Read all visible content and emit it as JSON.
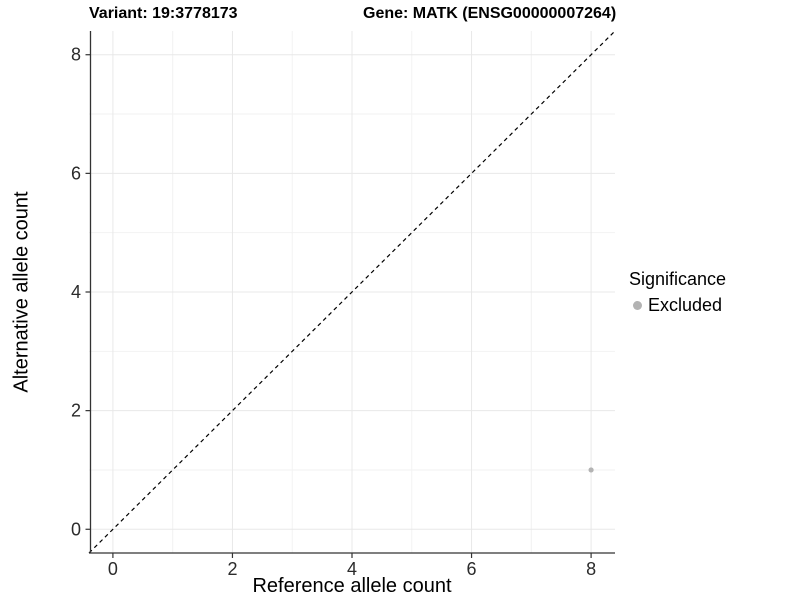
{
  "chart_data": {
    "type": "scatter",
    "titles": {
      "left": "Variant: 19:3778173",
      "right": "Gene: MATK (ENSG00000007264)"
    },
    "xlabel": "Reference allele count",
    "ylabel": "Alternative allele count",
    "xlim": [
      -0.4,
      8.4
    ],
    "ylim": [
      -0.4,
      8.4
    ],
    "x_ticks": [
      0,
      2,
      4,
      6,
      8
    ],
    "y_ticks": [
      0,
      2,
      4,
      6,
      8
    ],
    "x_minor": [
      1,
      3,
      5,
      7
    ],
    "y_minor": [
      1,
      3,
      5,
      7
    ],
    "grid": "on",
    "reference_line": {
      "type": "identity",
      "equation": "y = x",
      "style": "dashed",
      "color": "#000000"
    },
    "series": [
      {
        "name": "Excluded",
        "color": "#b3b3b3",
        "points": [
          {
            "x": 8,
            "y": 1
          }
        ]
      }
    ],
    "legend": {
      "title": "Significance",
      "position": "right",
      "items": [
        {
          "label": "Excluded",
          "color": "#b3b3b3"
        }
      ]
    },
    "colors": {
      "grid_major": "#e8e8e8",
      "grid_minor": "#f2f2f2",
      "axis_line": "#333333",
      "tick_mark": "#333333",
      "tick_text": "#2b2b2b",
      "background": "#ffffff"
    }
  }
}
